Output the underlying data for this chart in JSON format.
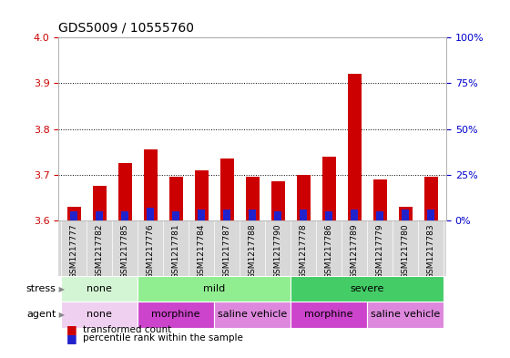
{
  "title": "GDS5009 / 10555760",
  "samples": [
    "GSM1217777",
    "GSM1217782",
    "GSM1217785",
    "GSM1217776",
    "GSM1217781",
    "GSM1217784",
    "GSM1217787",
    "GSM1217788",
    "GSM1217790",
    "GSM1217778",
    "GSM1217786",
    "GSM1217789",
    "GSM1217779",
    "GSM1217780",
    "GSM1217783"
  ],
  "transformed_count": [
    3.63,
    3.675,
    3.725,
    3.755,
    3.695,
    3.71,
    3.735,
    3.695,
    3.685,
    3.7,
    3.74,
    3.92,
    3.69,
    3.63,
    3.695
  ],
  "blue_percentiles": [
    5,
    5,
    5,
    7,
    5,
    6,
    6,
    6,
    5,
    6,
    5,
    6,
    5,
    6,
    6
  ],
  "ylim_left": [
    3.6,
    4.0
  ],
  "ylim_right": [
    0,
    100
  ],
  "yticks_left": [
    3.6,
    3.7,
    3.8,
    3.9,
    4.0
  ],
  "yticks_right": [
    0,
    25,
    50,
    75,
    100
  ],
  "ytick_labels_right": [
    "0%",
    "25%",
    "50%",
    "75%",
    "100%"
  ],
  "bar_width": 0.55,
  "blue_bar_width": 0.28,
  "bar_color_red": "#cc0000",
  "bar_color_blue": "#2222cc",
  "bar_base": 3.6,
  "stress_groups": [
    {
      "label": "none",
      "start": 0,
      "end": 3,
      "color": "#d4f5d4"
    },
    {
      "label": "mild",
      "start": 3,
      "end": 9,
      "color": "#90ee90"
    },
    {
      "label": "severe",
      "start": 9,
      "end": 15,
      "color": "#44cc66"
    }
  ],
  "agent_groups": [
    {
      "label": "none",
      "start": 0,
      "end": 3,
      "color": "#f0d0f0"
    },
    {
      "label": "morphine",
      "start": 3,
      "end": 6,
      "color": "#cc44cc"
    },
    {
      "label": "saline vehicle",
      "start": 6,
      "end": 9,
      "color": "#dd88dd"
    },
    {
      "label": "morphine",
      "start": 9,
      "end": 12,
      "color": "#cc44cc"
    },
    {
      "label": "saline vehicle",
      "start": 12,
      "end": 15,
      "color": "#dd88dd"
    }
  ],
  "tick_color_left": "#cc0000",
  "tick_color_right": "#0000cc",
  "label_color_gray": "#888888",
  "xlim": [
    -0.6,
    14.6
  ]
}
